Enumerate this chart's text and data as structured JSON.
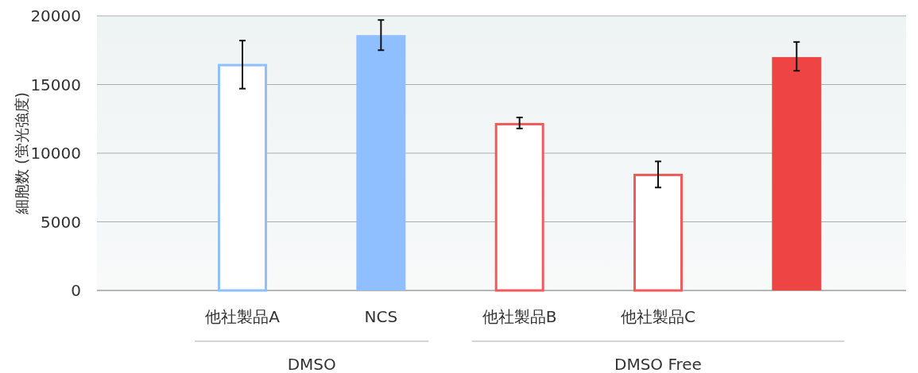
{
  "chart_data": {
    "type": "bar",
    "ylabel": "細胞数 (蛍光強度)",
    "categories": [
      "他社製品A",
      "NCS",
      "他社製品B",
      "他社製品C",
      null
    ],
    "series": [
      {
        "colors": [
          "#8fbfff",
          null,
          "#ef5b5b",
          "#ef5b5b",
          null
        ],
        "values": [
          16500,
          null,
          12200,
          8500,
          null
        ],
        "errors": [
          [
            14700,
            18200
          ],
          null,
          [
            11800,
            12600
          ],
          [
            7500,
            9400
          ],
          null
        ]
      },
      {
        "colors": [
          null,
          "#8fbfff",
          null,
          null,
          "#ef4444"
        ],
        "values": [
          null,
          18600,
          null,
          null,
          17000
        ],
        "errors": [
          null,
          [
            17500,
            19700
          ],
          null,
          null,
          [
            16000,
            18100
          ]
        ]
      }
    ],
    "ylim": [
      0,
      20000
    ],
    "yticks": [
      0,
      5000,
      10000,
      15000,
      20000
    ],
    "grid": "y",
    "annotations": [
      "DMSO",
      "DMSO Free"
    ]
  }
}
